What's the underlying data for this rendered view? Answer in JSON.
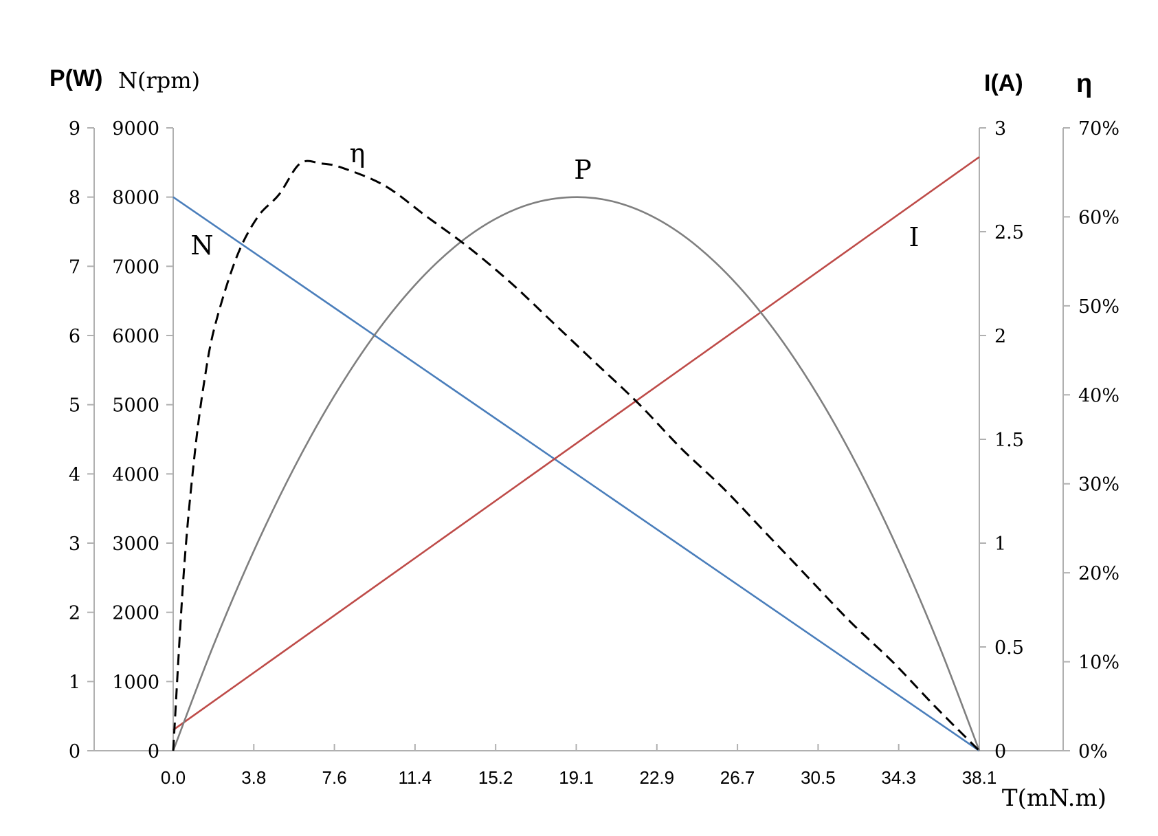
{
  "chart_data": {
    "type": "line",
    "x_label": "T(mN.m)",
    "x_ticks": [
      "0.0",
      "3.8",
      "7.6",
      "11.4",
      "15.2",
      "19.1",
      "22.9",
      "26.7",
      "30.5",
      "34.3",
      "38.1"
    ],
    "xlim": [
      0,
      38.1
    ],
    "axes": {
      "p": {
        "label": "P(W)",
        "ticks": [
          "0",
          "1",
          "2",
          "3",
          "4",
          "5",
          "6",
          "7",
          "8",
          "9"
        ],
        "lim": [
          0,
          9
        ]
      },
      "n": {
        "label": "N(rpm)",
        "ticks": [
          "0",
          "1000",
          "2000",
          "3000",
          "4000",
          "5000",
          "6000",
          "7000",
          "8000",
          "9000"
        ],
        "lim": [
          0,
          9000
        ]
      },
      "i": {
        "label": "I(A)",
        "ticks": [
          "0",
          "0.5",
          "1",
          "1.5",
          "2",
          "2.5",
          "3"
        ],
        "lim": [
          0,
          3
        ]
      },
      "eta": {
        "label": "η",
        "ticks": [
          "0%",
          "10%",
          "20%",
          "30%",
          "40%",
          "50%",
          "60%",
          "70%"
        ],
        "lim": [
          0,
          0.7
        ]
      }
    },
    "series": [
      {
        "name": "N",
        "axis": "n",
        "color": "#4a7ebb",
        "dash": false,
        "x": [
          0,
          38.1
        ],
        "y": [
          8000,
          0
        ]
      },
      {
        "name": "I",
        "axis": "i",
        "color": "#be4b48",
        "dash": false,
        "x": [
          0,
          38.1
        ],
        "y": [
          0.1,
          2.86
        ]
      },
      {
        "name": "P",
        "axis": "p",
        "color": "#7f7f7f",
        "dash": false,
        "x": [
          0,
          1.9,
          3.8,
          5.7,
          7.6,
          9.5,
          11.4,
          13.3,
          15.2,
          17.1,
          19.1,
          21.0,
          22.9,
          24.8,
          26.7,
          28.6,
          30.5,
          32.4,
          34.3,
          36.2,
          38.1
        ],
        "y": [
          0,
          1.52,
          2.88,
          4.08,
          5.12,
          6.0,
          6.72,
          7.28,
          7.68,
          7.92,
          8.0,
          7.92,
          7.68,
          7.28,
          6.72,
          6.0,
          5.12,
          4.08,
          2.88,
          1.52,
          0
        ]
      },
      {
        "name": "η",
        "axis": "eta",
        "color": "#000000",
        "dash": true,
        "x": [
          0,
          0.5,
          1.0,
          1.5,
          2.0,
          3.0,
          4.0,
          5.0,
          6.0,
          7.0,
          8.0,
          10.0,
          12.0,
          14.0,
          16.0,
          18.0,
          20.0,
          22.0,
          24.0,
          26.0,
          28.0,
          30.0,
          32.0,
          34.0,
          36.0,
          38.1
        ],
        "y": [
          0,
          0.2,
          0.33,
          0.42,
          0.48,
          0.555,
          0.6,
          0.625,
          0.66,
          0.66,
          0.655,
          0.635,
          0.6,
          0.565,
          0.525,
          0.48,
          0.435,
          0.39,
          0.34,
          0.295,
          0.245,
          0.195,
          0.145,
          0.1,
          0.05,
          0
        ]
      }
    ],
    "annotations": [
      {
        "text": "η",
        "series": "η"
      },
      {
        "text": "P",
        "series": "P"
      },
      {
        "text": "N",
        "series": "N"
      },
      {
        "text": "I",
        "series": "I"
      }
    ],
    "grid": false,
    "legend": "none"
  }
}
